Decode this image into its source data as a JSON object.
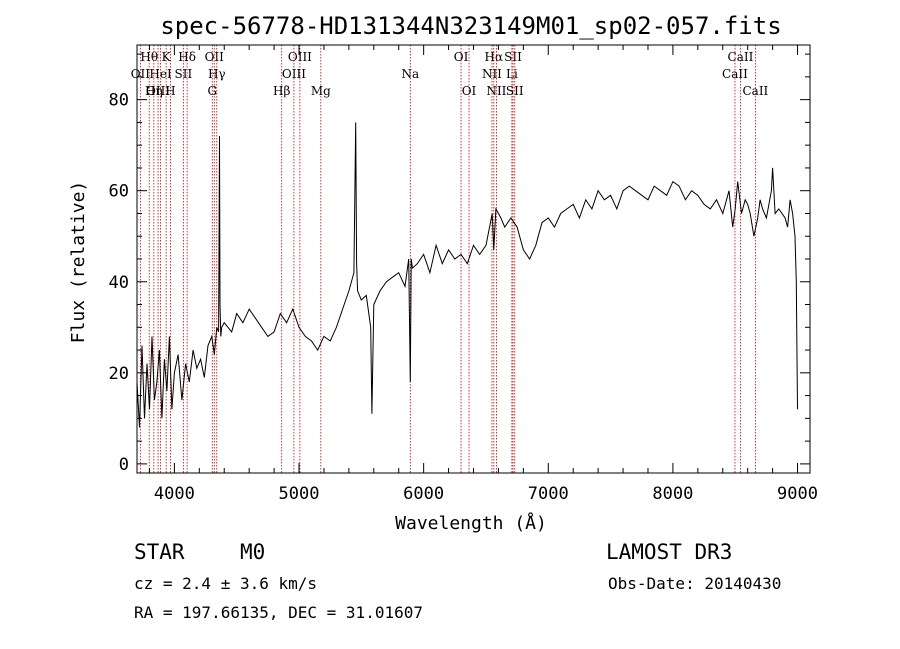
{
  "chart_data": {
    "type": "line",
    "title": "spec-56778-HD131344N323149M01_sp02-057.fits",
    "xlabel": "Wavelength (Å)",
    "ylabel": "Flux (relative)",
    "xlim": [
      3700,
      9100
    ],
    "ylim": [
      -2,
      92
    ],
    "xticks": [
      4000,
      5000,
      6000,
      7000,
      8000,
      9000
    ],
    "yticks": [
      0,
      20,
      40,
      60,
      80
    ],
    "series": [
      {
        "name": "flux",
        "x": [
          3700,
          3720,
          3740,
          3760,
          3780,
          3800,
          3820,
          3840,
          3860,
          3880,
          3900,
          3920,
          3940,
          3960,
          3980,
          4000,
          4030,
          4060,
          4090,
          4120,
          4150,
          4180,
          4210,
          4240,
          4270,
          4300,
          4320,
          4340,
          4355,
          4362,
          4366,
          4372,
          4380,
          4400,
          4430,
          4460,
          4500,
          4550,
          4600,
          4650,
          4700,
          4750,
          4800,
          4850,
          4900,
          4950,
          5000,
          5050,
          5100,
          5150,
          5200,
          5250,
          5300,
          5350,
          5400,
          5440,
          5455,
          5462,
          5470,
          5500,
          5540,
          5575,
          5585,
          5600,
          5650,
          5700,
          5750,
          5800,
          5850,
          5880,
          5893,
          5900,
          5910,
          5950,
          6000,
          6050,
          6100,
          6150,
          6200,
          6250,
          6300,
          6350,
          6400,
          6450,
          6500,
          6550,
          6563,
          6580,
          6620,
          6650,
          6700,
          6750,
          6800,
          6850,
          6900,
          6950,
          7000,
          7050,
          7100,
          7150,
          7200,
          7250,
          7300,
          7350,
          7400,
          7450,
          7500,
          7550,
          7600,
          7650,
          7700,
          7750,
          7800,
          7850,
          7900,
          7950,
          8000,
          8050,
          8100,
          8150,
          8200,
          8250,
          8300,
          8350,
          8400,
          8450,
          8480,
          8500,
          8520,
          8550,
          8580,
          8600,
          8620,
          8650,
          8680,
          8700,
          8720,
          8750,
          8790,
          8800,
          8820,
          8850,
          8900,
          8920,
          8940,
          8960,
          8980,
          8990,
          9000
        ],
        "values": [
          18,
          8,
          26,
          10,
          22,
          12,
          28,
          14,
          18,
          25,
          10,
          23,
          16,
          28,
          12,
          20,
          24,
          14,
          22,
          18,
          25,
          21,
          23,
          19,
          26,
          28,
          24,
          30,
          29,
          72,
          35,
          28,
          30,
          31,
          30,
          29,
          33,
          31,
          34,
          32,
          30,
          28,
          29,
          33,
          31,
          34,
          30,
          28,
          27,
          25,
          28,
          27,
          30,
          34,
          38,
          42,
          75,
          44,
          38,
          36,
          37,
          30,
          11,
          35,
          38,
          40,
          41,
          42,
          39,
          45,
          18,
          45,
          43,
          44,
          46,
          42,
          48,
          44,
          47,
          45,
          46,
          44,
          48,
          46,
          48,
          55,
          47,
          56,
          54,
          52,
          54,
          52,
          47,
          45,
          48,
          53,
          54,
          52,
          55,
          56,
          57,
          54,
          58,
          56,
          60,
          58,
          59,
          56,
          60,
          61,
          60,
          59,
          58,
          61,
          60,
          59,
          62,
          61,
          58,
          60,
          59,
          57,
          56,
          58,
          55,
          60,
          52,
          56,
          62,
          55,
          58,
          57,
          55,
          50,
          54,
          58,
          56,
          54,
          60,
          65,
          55,
          56,
          54,
          52,
          58,
          55,
          50,
          40,
          12
        ],
        "color": "#000000"
      }
    ],
    "spectral_lines": [
      {
        "label": "Hθ",
        "x": 3798,
        "row": 1
      },
      {
        "label": "OII",
        "x": 3727,
        "row": 2
      },
      {
        "label": "OIII",
        "x": 3869,
        "row": 3
      },
      {
        "label": "Hη",
        "x": 3835,
        "row": 3
      },
      {
        "label": "K",
        "x": 3934,
        "row": 1
      },
      {
        "label": "HeI",
        "x": 3889,
        "row": 2
      },
      {
        "label": "H",
        "x": 3968,
        "row": 3
      },
      {
        "label": "SII",
        "x": 4072,
        "row": 2
      },
      {
        "label": "Hδ",
        "x": 4102,
        "row": 1
      },
      {
        "label": "OII",
        "x": 4320,
        "row": 1
      },
      {
        "label": "Hγ",
        "x": 4340,
        "row": 2
      },
      {
        "label": "G",
        "x": 4304,
        "row": 3
      },
      {
        "label": "Hβ",
        "x": 4861,
        "row": 3
      },
      {
        "label": "OIII",
        "x": 5007,
        "row": 1
      },
      {
        "label": "OIII",
        "x": 4959,
        "row": 2
      },
      {
        "label": "Mg",
        "x": 5175,
        "row": 3
      },
      {
        "label": "Na",
        "x": 5893,
        "row": 2
      },
      {
        "label": "OI",
        "x": 6300,
        "row": 1
      },
      {
        "label": "OI",
        "x": 6364,
        "row": 3
      },
      {
        "label": "Hα",
        "x": 6563,
        "row": 1
      },
      {
        "label": "NII",
        "x": 6548,
        "row": 2
      },
      {
        "label": "NII",
        "x": 6584,
        "row": 3
      },
      {
        "label": "SII",
        "x": 6717,
        "row": 1
      },
      {
        "label": "Li",
        "x": 6708,
        "row": 2
      },
      {
        "label": "SII",
        "x": 6731,
        "row": 3
      },
      {
        "label": "CaII",
        "x": 8542,
        "row": 1
      },
      {
        "label": "CaII",
        "x": 8498,
        "row": 2
      },
      {
        "label": "CaII",
        "x": 8662,
        "row": 3
      }
    ]
  },
  "info": {
    "object_class": "STAR",
    "subclass": "M0",
    "survey": "LAMOST DR3",
    "cz": "cz = 2.4 ± 3.6 km/s",
    "obs_date": "Obs-Date: 20140430",
    "coords": "RA = 197.66135, DEC =  31.01607"
  },
  "colors": {
    "line_marker": "#cc0000",
    "flux": "#000000"
  }
}
